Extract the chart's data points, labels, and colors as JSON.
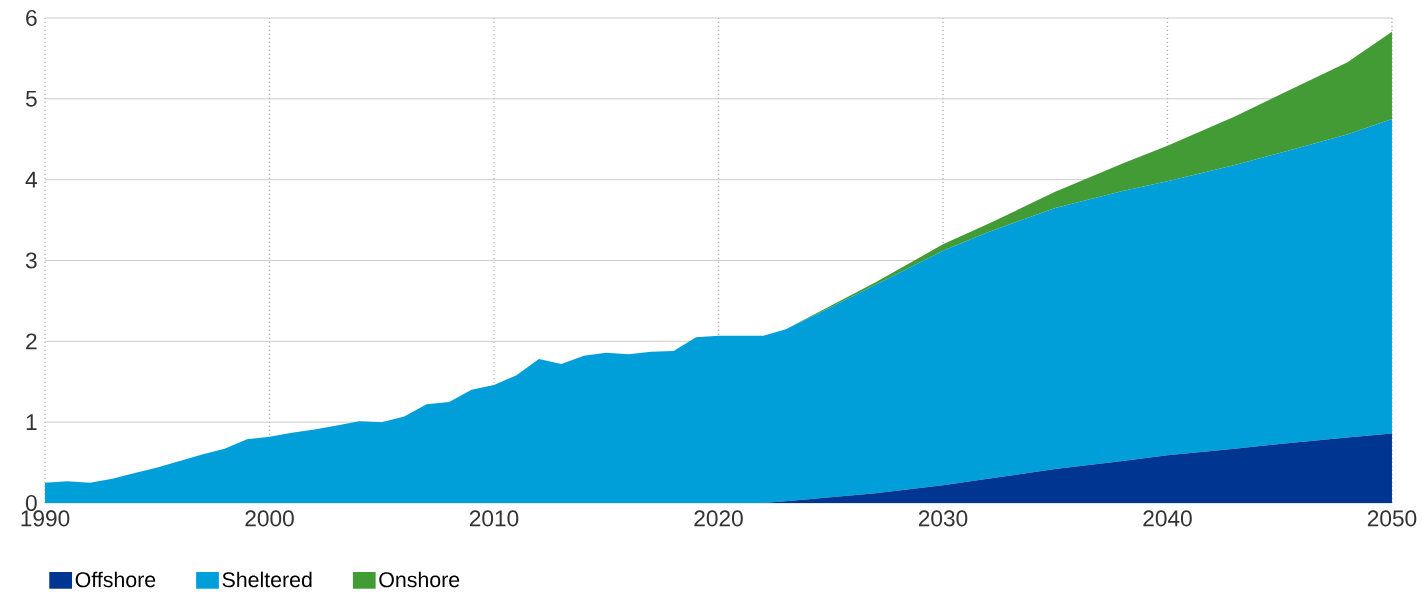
{
  "chart_data": {
    "type": "area",
    "stacked": true,
    "grid": true,
    "legend": "bottom left",
    "x": [
      1990,
      1991,
      1992,
      1993,
      1994,
      1995,
      1996,
      1997,
      1998,
      1999,
      2000,
      2001,
      2002,
      2003,
      2004,
      2005,
      2006,
      2007,
      2008,
      2009,
      2010,
      2011,
      2012,
      2013,
      2014,
      2015,
      2016,
      2017,
      2018,
      2019,
      2020,
      2021,
      2022,
      2023,
      2025,
      2027,
      2030,
      2032,
      2035,
      2038,
      2040,
      2043,
      2045,
      2048,
      2050
    ],
    "series": [
      {
        "name": "Offshore",
        "color": "#003591",
        "values": [
          0,
          0,
          0,
          0,
          0,
          0,
          0,
          0,
          0,
          0,
          0,
          0,
          0,
          0,
          0,
          0,
          0,
          0,
          0,
          0,
          0,
          0,
          0,
          0,
          0,
          0,
          0,
          0,
          0,
          0,
          0,
          0,
          0,
          0.02,
          0.07,
          0.12,
          0.22,
          0.3,
          0.42,
          0.52,
          0.59,
          0.67,
          0.73,
          0.81,
          0.86
        ]
      },
      {
        "name": "Sheltered",
        "color": "#009fda",
        "values": [
          0.25,
          0.27,
          0.25,
          0.3,
          0.37,
          0.44,
          0.52,
          0.6,
          0.67,
          0.79,
          0.82,
          0.87,
          0.91,
          0.96,
          1.01,
          1.0,
          1.07,
          1.22,
          1.25,
          1.4,
          1.46,
          1.58,
          1.78,
          1.72,
          1.82,
          1.86,
          1.84,
          1.87,
          1.88,
          2.05,
          2.07,
          2.07,
          2.07,
          2.13,
          2.35,
          2.58,
          2.9,
          3.05,
          3.23,
          3.34,
          3.39,
          3.51,
          3.6,
          3.75,
          3.89
        ]
      },
      {
        "name": "Onshore",
        "color": "#429b35",
        "values": [
          0,
          0,
          0,
          0,
          0,
          0,
          0,
          0,
          0,
          0,
          0,
          0,
          0,
          0,
          0,
          0,
          0,
          0,
          0,
          0,
          0,
          0,
          0,
          0,
          0,
          0,
          0,
          0,
          0,
          0,
          0,
          0,
          0,
          0,
          0.02,
          0.03,
          0.08,
          0.1,
          0.2,
          0.34,
          0.44,
          0.6,
          0.72,
          0.89,
          1.08
        ]
      }
    ],
    "xlim": [
      1990,
      2050
    ],
    "ylim": [
      0,
      6
    ],
    "xticks": [
      1990,
      2000,
      2010,
      2020,
      2030,
      2040,
      2050
    ],
    "yticks": [
      0,
      1,
      2,
      3,
      4,
      5,
      6
    ]
  }
}
